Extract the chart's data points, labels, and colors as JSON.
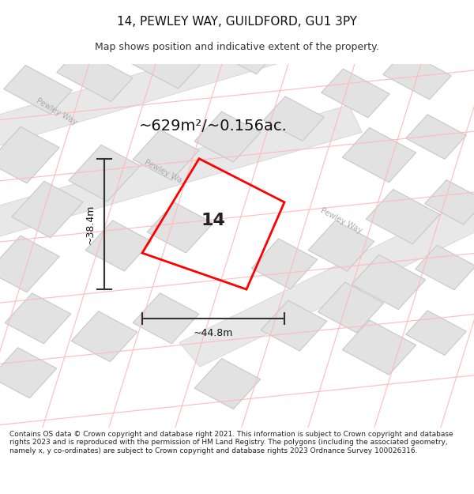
{
  "title": "14, PEWLEY WAY, GUILDFORD, GU1 3PY",
  "subtitle": "Map shows position and indicative extent of the property.",
  "area_text": "~629m²/~0.156ac.",
  "number_label": "14",
  "dim_width": "~44.8m",
  "dim_height": "~38.4m",
  "footer_text": "Contains OS data © Crown copyright and database right 2021. This information is subject to Crown copyright and database rights 2023 and is reproduced with the permission of HM Land Registry. The polygons (including the associated geometry, namely x, y co-ordinates) are subject to Crown copyright and database rights 2023 Ordnance Survey 100026316.",
  "bg_color": "#ffffff",
  "map_bg": "#f5f5f5",
  "road_color": "#e8e8e8",
  "road_line_color": "#d0d0d0",
  "plot_outline_color": "#ff0000",
  "building_fill": "#e0e0e0",
  "building_stroke": "#c0c0c0",
  "pink_line_color": "#ffaaaa",
  "text_color": "#333333",
  "road_text_color": "#999999",
  "dim_line_color": "#444444",
  "figsize": [
    6.0,
    6.25
  ],
  "dpi": 100
}
